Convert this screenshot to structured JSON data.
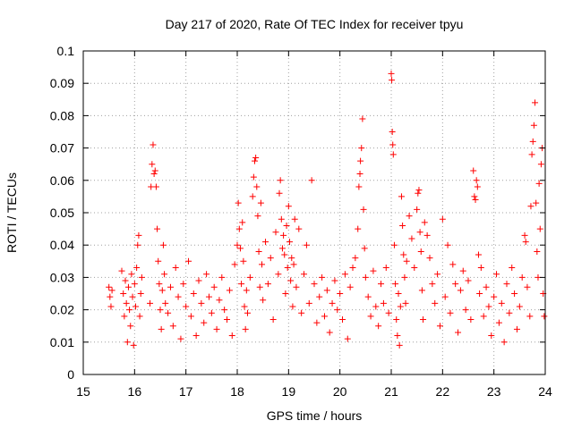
{
  "chart_data": {
    "type": "scatter",
    "title": "Day 217 of 2020, Rate Of TEC Index for receiver tpyu",
    "xlabel": "GPS time / hours",
    "ylabel": "ROTI / TECUs",
    "xlim": [
      15,
      24
    ],
    "ylim": [
      0,
      0.1
    ],
    "xticks": [
      15,
      16,
      17,
      18,
      19,
      20,
      21,
      22,
      23,
      24
    ],
    "yticks": [
      0,
      0.01,
      0.02,
      0.03,
      0.04,
      0.05,
      0.06,
      0.07,
      0.08,
      0.09,
      0.1
    ],
    "xtick_labels": [
      "15",
      "16",
      "17",
      "18",
      "19",
      "20",
      "21",
      "22",
      "23",
      "24"
    ],
    "ytick_labels": [
      "0",
      "0.01",
      "0.02",
      "0.03",
      "0.04",
      "0.05",
      "0.06",
      "0.07",
      "0.08",
      "0.09",
      "0.1"
    ],
    "grid": true,
    "marker": "+",
    "color": "#ff0000",
    "series": [
      {
        "name": "ROTI",
        "points": [
          [
            15.5,
            0.027
          ],
          [
            15.52,
            0.024
          ],
          [
            15.54,
            0.021
          ],
          [
            15.56,
            0.026
          ],
          [
            15.75,
            0.032
          ],
          [
            15.78,
            0.025
          ],
          [
            15.8,
            0.018
          ],
          [
            15.82,
            0.029
          ],
          [
            15.84,
            0.022
          ],
          [
            15.86,
            0.01
          ],
          [
            15.88,
            0.027
          ],
          [
            15.9,
            0.02
          ],
          [
            15.92,
            0.015
          ],
          [
            15.94,
            0.031
          ],
          [
            15.96,
            0.024
          ],
          [
            15.98,
            0.009
          ],
          [
            16.0,
            0.028
          ],
          [
            16.02,
            0.021
          ],
          [
            16.04,
            0.033
          ],
          [
            16.06,
            0.04
          ],
          [
            16.08,
            0.043
          ],
          [
            16.1,
            0.018
          ],
          [
            16.12,
            0.025
          ],
          [
            16.14,
            0.03
          ],
          [
            16.3,
            0.022
          ],
          [
            16.32,
            0.058
          ],
          [
            16.34,
            0.065
          ],
          [
            16.36,
            0.071
          ],
          [
            16.38,
            0.062
          ],
          [
            16.4,
            0.063
          ],
          [
            16.42,
            0.058
          ],
          [
            16.44,
            0.045
          ],
          [
            16.46,
            0.035
          ],
          [
            16.48,
            0.028
          ],
          [
            16.5,
            0.02
          ],
          [
            16.52,
            0.014
          ],
          [
            16.54,
            0.026
          ],
          [
            16.56,
            0.04
          ],
          [
            16.58,
            0.031
          ],
          [
            16.6,
            0.022
          ],
          [
            16.65,
            0.019
          ],
          [
            16.7,
            0.027
          ],
          [
            16.75,
            0.015
          ],
          [
            16.8,
            0.033
          ],
          [
            16.85,
            0.024
          ],
          [
            16.9,
            0.011
          ],
          [
            16.95,
            0.028
          ],
          [
            17.0,
            0.021
          ],
          [
            17.05,
            0.035
          ],
          [
            17.1,
            0.018
          ],
          [
            17.15,
            0.025
          ],
          [
            17.2,
            0.012
          ],
          [
            17.25,
            0.029
          ],
          [
            17.3,
            0.022
          ],
          [
            17.35,
            0.016
          ],
          [
            17.4,
            0.031
          ],
          [
            17.45,
            0.024
          ],
          [
            17.5,
            0.019
          ],
          [
            17.55,
            0.027
          ],
          [
            17.6,
            0.014
          ],
          [
            17.65,
            0.023
          ],
          [
            17.7,
            0.03
          ],
          [
            17.75,
            0.02
          ],
          [
            17.8,
            0.017
          ],
          [
            17.85,
            0.026
          ],
          [
            17.9,
            0.012
          ],
          [
            17.95,
            0.034
          ],
          [
            18.0,
            0.04
          ],
          [
            18.02,
            0.053
          ],
          [
            18.04,
            0.045
          ],
          [
            18.06,
            0.039
          ],
          [
            18.08,
            0.028
          ],
          [
            18.1,
            0.047
          ],
          [
            18.12,
            0.035
          ],
          [
            18.14,
            0.021
          ],
          [
            18.16,
            0.014
          ],
          [
            18.18,
            0.026
          ],
          [
            18.2,
            0.019
          ],
          [
            18.25,
            0.03
          ],
          [
            18.3,
            0.055
          ],
          [
            18.32,
            0.061
          ],
          [
            18.34,
            0.066
          ],
          [
            18.36,
            0.067
          ],
          [
            18.38,
            0.058
          ],
          [
            18.4,
            0.049
          ],
          [
            18.42,
            0.038
          ],
          [
            18.44,
            0.027
          ],
          [
            18.46,
            0.053
          ],
          [
            18.48,
            0.034
          ],
          [
            18.5,
            0.023
          ],
          [
            18.55,
            0.041
          ],
          [
            18.6,
            0.028
          ],
          [
            18.65,
            0.036
          ],
          [
            18.7,
            0.017
          ],
          [
            18.75,
            0.044
          ],
          [
            18.8,
            0.031
          ],
          [
            18.82,
            0.056
          ],
          [
            18.84,
            0.06
          ],
          [
            18.86,
            0.048
          ],
          [
            18.88,
            0.039
          ],
          [
            18.9,
            0.043
          ],
          [
            18.92,
            0.037
          ],
          [
            18.94,
            0.025
          ],
          [
            18.96,
            0.046
          ],
          [
            18.98,
            0.033
          ],
          [
            19.0,
            0.052
          ],
          [
            19.02,
            0.041
          ],
          [
            19.04,
            0.029
          ],
          [
            19.06,
            0.036
          ],
          [
            19.08,
            0.021
          ],
          [
            19.1,
            0.034
          ],
          [
            19.12,
            0.048
          ],
          [
            19.15,
            0.027
          ],
          [
            19.2,
            0.045
          ],
          [
            19.25,
            0.019
          ],
          [
            19.3,
            0.031
          ],
          [
            19.35,
            0.04
          ],
          [
            19.4,
            0.022
          ],
          [
            19.45,
            0.06
          ],
          [
            19.5,
            0.028
          ],
          [
            19.55,
            0.016
          ],
          [
            19.6,
            0.024
          ],
          [
            19.65,
            0.03
          ],
          [
            19.7,
            0.018
          ],
          [
            19.75,
            0.026
          ],
          [
            19.8,
            0.013
          ],
          [
            19.85,
            0.022
          ],
          [
            19.9,
            0.029
          ],
          [
            19.95,
            0.02
          ],
          [
            20.0,
            0.025
          ],
          [
            20.05,
            0.017
          ],
          [
            20.1,
            0.031
          ],
          [
            20.15,
            0.011
          ],
          [
            20.2,
            0.027
          ],
          [
            20.25,
            0.033
          ],
          [
            20.3,
            0.036
          ],
          [
            20.35,
            0.045
          ],
          [
            20.37,
            0.058
          ],
          [
            20.39,
            0.062
          ],
          [
            20.4,
            0.066
          ],
          [
            20.42,
            0.07
          ],
          [
            20.44,
            0.079
          ],
          [
            20.46,
            0.051
          ],
          [
            20.48,
            0.039
          ],
          [
            20.5,
            0.03
          ],
          [
            20.55,
            0.024
          ],
          [
            20.6,
            0.018
          ],
          [
            20.65,
            0.032
          ],
          [
            20.7,
            0.021
          ],
          [
            20.75,
            0.015
          ],
          [
            20.8,
            0.028
          ],
          [
            20.85,
            0.022
          ],
          [
            20.9,
            0.033
          ],
          [
            20.95,
            0.019
          ],
          [
            21.0,
            0.093
          ],
          [
            21.01,
            0.091
          ],
          [
            21.02,
            0.075
          ],
          [
            21.03,
            0.071
          ],
          [
            21.04,
            0.068
          ],
          [
            21.06,
            0.04
          ],
          [
            21.08,
            0.028
          ],
          [
            21.1,
            0.017
          ],
          [
            21.12,
            0.012
          ],
          [
            21.14,
            0.025
          ],
          [
            21.16,
            0.009
          ],
          [
            21.18,
            0.021
          ],
          [
            21.2,
            0.055
          ],
          [
            21.22,
            0.046
          ],
          [
            21.24,
            0.037
          ],
          [
            21.26,
            0.03
          ],
          [
            21.28,
            0.022
          ],
          [
            21.3,
            0.035
          ],
          [
            21.35,
            0.049
          ],
          [
            21.4,
            0.042
          ],
          [
            21.45,
            0.033
          ],
          [
            21.5,
            0.051
          ],
          [
            21.52,
            0.056
          ],
          [
            21.54,
            0.057
          ],
          [
            21.56,
            0.044
          ],
          [
            21.58,
            0.038
          ],
          [
            21.6,
            0.026
          ],
          [
            21.62,
            0.017
          ],
          [
            21.65,
            0.047
          ],
          [
            21.7,
            0.043
          ],
          [
            21.75,
            0.036
          ],
          [
            21.8,
            0.028
          ],
          [
            21.85,
            0.022
          ],
          [
            21.9,
            0.031
          ],
          [
            21.95,
            0.015
          ],
          [
            22.0,
            0.048
          ],
          [
            22.05,
            0.024
          ],
          [
            22.1,
            0.04
          ],
          [
            22.15,
            0.019
          ],
          [
            22.2,
            0.034
          ],
          [
            22.25,
            0.028
          ],
          [
            22.3,
            0.013
          ],
          [
            22.35,
            0.026
          ],
          [
            22.4,
            0.032
          ],
          [
            22.45,
            0.02
          ],
          [
            22.5,
            0.029
          ],
          [
            22.55,
            0.017
          ],
          [
            22.6,
            0.063
          ],
          [
            22.62,
            0.055
          ],
          [
            22.64,
            0.054
          ],
          [
            22.66,
            0.06
          ],
          [
            22.68,
            0.058
          ],
          [
            22.7,
            0.037
          ],
          [
            22.72,
            0.025
          ],
          [
            22.75,
            0.033
          ],
          [
            22.8,
            0.018
          ],
          [
            22.85,
            0.027
          ],
          [
            22.9,
            0.021
          ],
          [
            22.95,
            0.012
          ],
          [
            23.0,
            0.024
          ],
          [
            23.05,
            0.031
          ],
          [
            23.1,
            0.016
          ],
          [
            23.15,
            0.022
          ],
          [
            23.2,
            0.01
          ],
          [
            23.25,
            0.028
          ],
          [
            23.3,
            0.019
          ],
          [
            23.35,
            0.033
          ],
          [
            23.4,
            0.025
          ],
          [
            23.45,
            0.014
          ],
          [
            23.5,
            0.021
          ],
          [
            23.55,
            0.03
          ],
          [
            23.6,
            0.043
          ],
          [
            23.62,
            0.041
          ],
          [
            23.65,
            0.027
          ],
          [
            23.7,
            0.018
          ],
          [
            23.72,
            0.052
          ],
          [
            23.74,
            0.068
          ],
          [
            23.76,
            0.072
          ],
          [
            23.78,
            0.077
          ],
          [
            23.8,
            0.084
          ],
          [
            23.82,
            0.053
          ],
          [
            23.84,
            0.038
          ],
          [
            23.86,
            0.03
          ],
          [
            23.88,
            0.059
          ],
          [
            23.9,
            0.045
          ],
          [
            23.92,
            0.065
          ],
          [
            23.94,
            0.07
          ],
          [
            23.96,
            0.025
          ],
          [
            23.98,
            0.018
          ]
        ]
      }
    ]
  }
}
